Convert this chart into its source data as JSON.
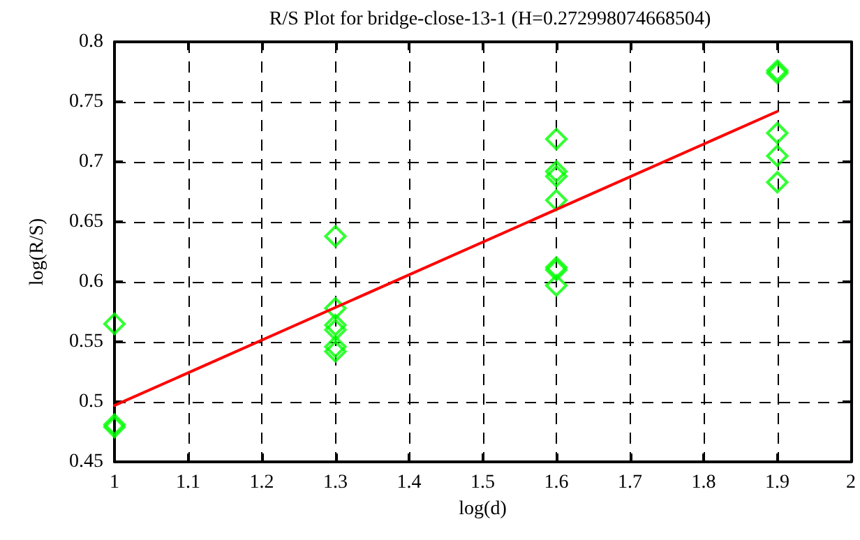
{
  "chart_data": {
    "type": "scatter",
    "title": "R/S Plot for bridge-close-13-1 (H=0.272998074668504)",
    "xlabel": "log(d)",
    "ylabel": "log(R/S)",
    "xlim": [
      1,
      2
    ],
    "xticks": [
      1,
      1.1,
      1.2,
      1.3,
      1.4,
      1.5,
      1.6,
      1.7,
      1.8,
      1.9,
      2
    ],
    "ylim": [
      0.45,
      0.8
    ],
    "yticks": [
      0.45,
      0.5,
      0.55,
      0.6,
      0.65,
      0.7,
      0.75,
      0.8
    ],
    "grid": true,
    "series": [
      {
        "marker": "diamond",
        "color": "#00ff00",
        "x": [
          1,
          1,
          1,
          1.3,
          1.3,
          1.3,
          1.3,
          1.3,
          1.3,
          1.6,
          1.6,
          1.6,
          1.6,
          1.6,
          1.6,
          1.6,
          1.9,
          1.9,
          1.9,
          1.9,
          1.9
        ],
        "values": [
          0.565,
          0.481,
          0.479,
          0.638,
          0.578,
          0.564,
          0.56,
          0.546,
          0.542,
          0.719,
          0.692,
          0.688,
          0.668,
          0.612,
          0.61,
          0.597,
          0.776,
          0.774,
          0.724,
          0.705,
          0.683
        ]
      },
      {
        "type": "line",
        "marker": "none",
        "line_style": "solid",
        "color": "#ff0000",
        "x": [
          1,
          1.9
        ],
        "values": [
          0.497,
          0.742
        ]
      }
    ]
  }
}
